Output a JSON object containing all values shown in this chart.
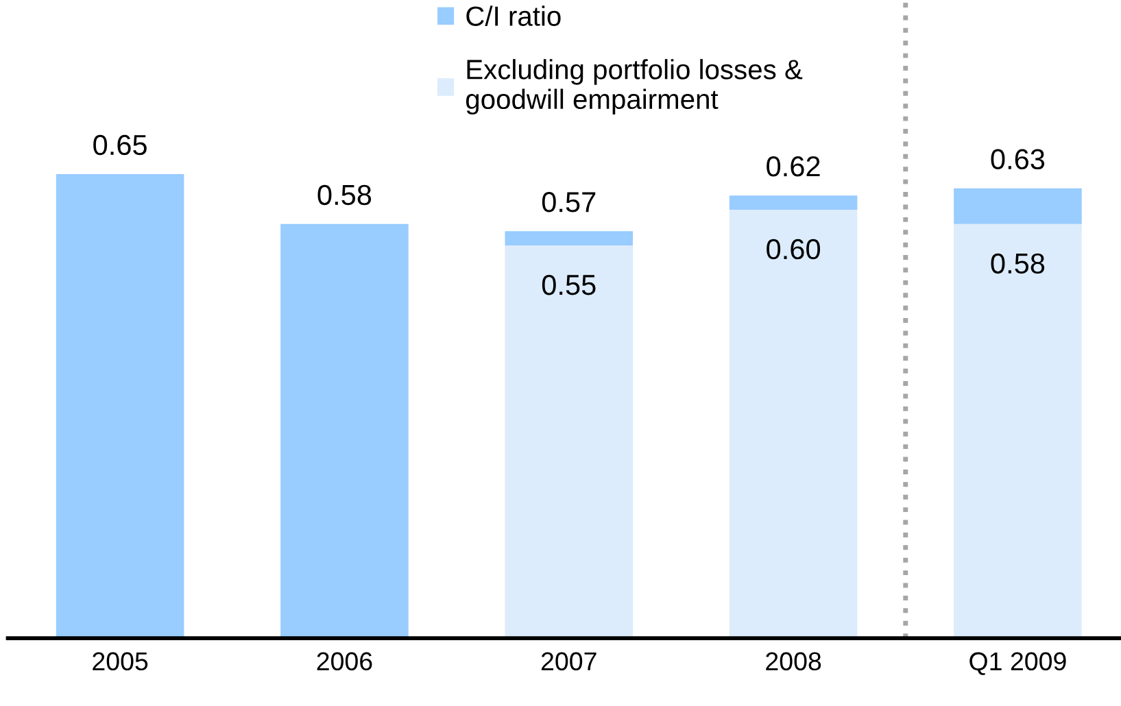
{
  "chart_data": {
    "type": "bar",
    "categories": [
      "2005",
      "2006",
      "2007",
      "2008",
      "Q1 2009"
    ],
    "stacked": true,
    "series": [
      {
        "name": "Excluding portfolio losses & goodwill empairment",
        "color": "#dcecfc",
        "values": [
          null,
          null,
          0.55,
          0.6,
          0.58
        ],
        "value_labels": [
          null,
          null,
          "0.55",
          "0.60",
          "0.58"
        ]
      },
      {
        "name": "C/I ratio",
        "color": "#99ccff",
        "values": [
          0.65,
          0.58,
          0.02,
          0.02,
          0.05
        ]
      }
    ],
    "totals": [
      "0.65",
      "0.58",
      "0.57",
      "0.62",
      "0.63"
    ],
    "legend": "top",
    "grid": false
  }
}
